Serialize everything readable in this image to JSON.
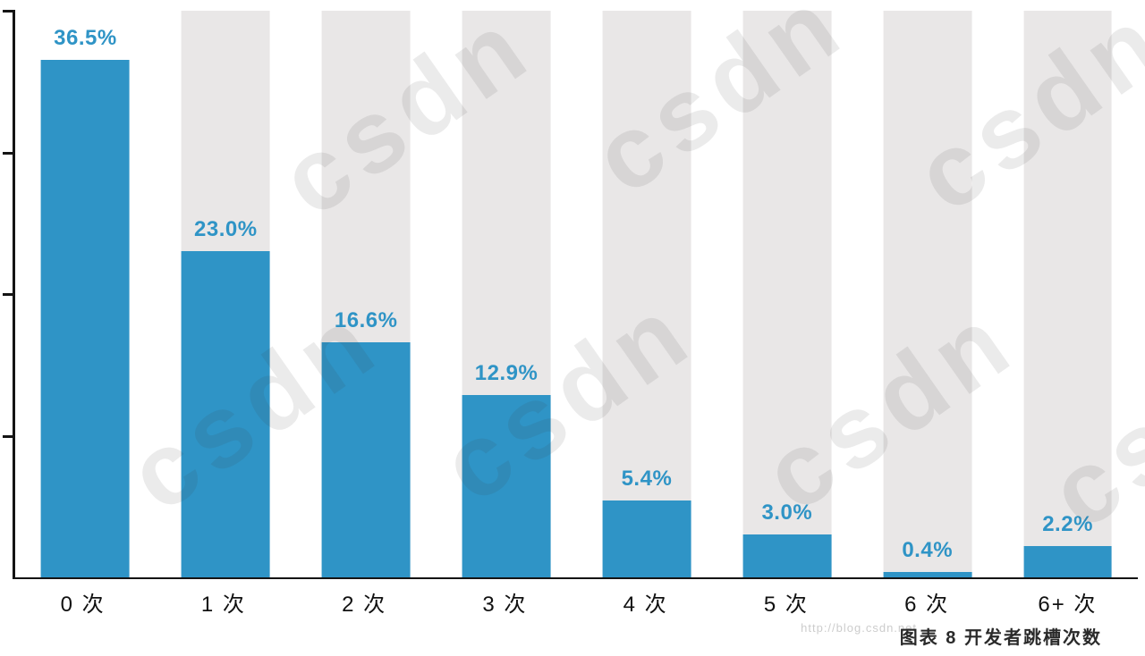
{
  "chart_data": {
    "type": "bar",
    "title": "",
    "xlabel": "",
    "ylabel": "",
    "categories": [
      "0 次",
      "1 次",
      "2 次",
      "3 次",
      "4 次",
      "5 次",
      "6 次",
      "6+ 次"
    ],
    "values": [
      36.5,
      23.0,
      16.6,
      12.9,
      5.4,
      3.0,
      0.4,
      2.2
    ],
    "value_labels": [
      "36.5%",
      "23.0%",
      "16.6%",
      "12.9%",
      "5.4%",
      "3.0%",
      "0.4%",
      "2.2%"
    ],
    "ylim": [
      0,
      40
    ],
    "yticks": [
      10,
      20,
      30,
      40
    ],
    "ytick_labels": [
      "",
      "",
      "",
      ""
    ],
    "bar_color": "#2f94c6",
    "track_color": "#e9e7e7",
    "grid": "off",
    "legend": "none"
  },
  "caption": "图表 8  开发者跳槽次数",
  "watermark": {
    "text": "csdn",
    "url_text": "http://blog.csdn.net"
  }
}
